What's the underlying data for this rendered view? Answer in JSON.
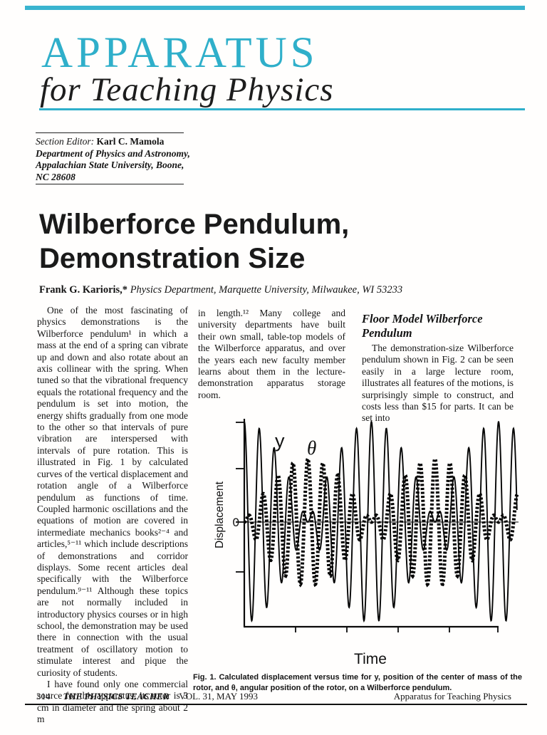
{
  "page": {
    "masthead": {
      "title": "APPARATUS",
      "subtitle": "for Teaching Physics",
      "accent_color": "#2fafca"
    },
    "editor_box": {
      "label": "Section Editor: ",
      "name": "Karl C. Mamola",
      "line1": "Department of Physics and Astronomy,",
      "line2": "Appalachian State University, Boone,",
      "line3": "NC 28608"
    },
    "article": {
      "title_line1": "Wilberforce Pendulum,",
      "title_line2": "Demonstration Size",
      "author_name": "Frank G. Karioris,*",
      "author_affiliation": " Physics Department, Marquette University, Milwaukee, WI 53233"
    },
    "columns": {
      "col1_para1": "One of the most fascinating of physics demonstrations is the Wilberforce pendulum¹ in which a mass at the end of a spring can vibrate up and down and also rotate about an axis collinear with the spring. When tuned so that the vibrational frequency equals the rotational frequency and the pendulum is set into motion, the energy shifts gradually from one mode to the other so that intervals of pure vibration are interspersed with intervals of pure rotation. This is illustrated in Fig. 1 by calculated curves of the vertical displacement and rotation angle of a Wilberforce pendulum as functions of time. Coupled harmonic oscillations and the equations of motion are covered in intermediate mechanics books²⁻⁴ and articles,⁵⁻¹¹ which include descriptions of demonstrations and corridor displays. Some recent articles deal specifically with the Wilberforce pendulum.⁹⁻¹¹ Although these topics are not normally included in introductory physics courses or in high school, the demonstration may be used there in connection with the usual treatment of oscillatory motion to stimulate interest and pique the curiosity of students.",
      "col1_para2": "I have found only one commercial source for this apparatus; its rotor is 3 cm in diameter and the spring about 2 m",
      "col2_para": "in length.¹² Many college and university departments have built their own small, table-top models of the Wilberforce apparatus, and over the years each new faculty member learns about them in the lecture-demonstration apparatus storage room.",
      "col3_heading": "Floor Model Wilberforce Pendulum",
      "col3_para": "The demonstration-size Wilberforce pendulum shown in Fig. 2 can be seen easily in a large lecture room, illustrates all features of the motions, is surprisingly simple to construct, and costs less than $15 for parts. It can be set into"
    },
    "figure_caption": "Fig. 1. Calculated displacement versus time for y, position of the center of mass of the rotor, and θ, angular position of the rotor, on a Wilberforce pendulum.",
    "footer": {
      "page_number": "314",
      "journal": "THE PHYSICS TEACHER",
      "volume": "VOL. 31, MAY 1993",
      "right": "Apparatus for Teaching Physics"
    }
  },
  "chart_data": {
    "type": "line",
    "title": "",
    "xlabel": "Time",
    "ylabel": "Displacement",
    "zero_label": "0",
    "series_label_y": "y",
    "series_label_theta": "θ",
    "x_range": [
      0,
      1.07
    ],
    "y_range": [
      -1,
      1
    ],
    "grid": false,
    "legend": "inline labels top-left",
    "axis_note": "arbitrary units; only the 0 level is labeled; 4 unlabeled y-ticks, 5 unlabeled x-ticks",
    "description": "Beats of a Wilberforce pendulum: energy alternates between vertical displacement y (thin solid) and rotation angle θ (thick dotted). y envelope is maximal where θ envelope is minimal; two full exchange cycles are shown.",
    "series": [
      {
        "name": "y",
        "style": "thin-solid",
        "amplitude": 1.0,
        "carrier_cycles": 17,
        "carrier_fn": "cos",
        "envelope_fn": "cos"
      },
      {
        "name": "θ",
        "style": "thick-dotted",
        "amplitude": 0.63,
        "carrier_cycles": 17,
        "carrier_fn": "sin",
        "envelope_fn": "sin"
      }
    ]
  }
}
